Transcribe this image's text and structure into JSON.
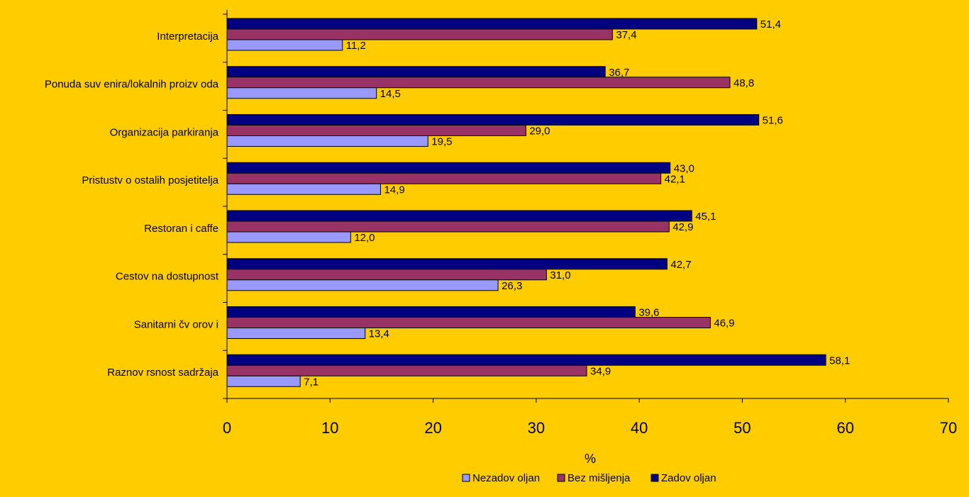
{
  "colors": {
    "background": "#FFCC00",
    "series": [
      "#9999FF",
      "#993366",
      "#000080"
    ]
  },
  "chart_data": {
    "type": "bar",
    "orientation": "horizontal",
    "categories": [
      "Interpretacija",
      "Ponuda suv enira/lokalnih proizv oda",
      "Organizacija parkiranja",
      "Pristustv o ostalih posjetitelja",
      "Restoran i caffe",
      "Cestov na dostupnost",
      "Sanitarni čv orov i",
      "Raznov rsnost sadržaja"
    ],
    "series": [
      {
        "name": "Nezadov oljan",
        "values": [
          11.2,
          14.5,
          19.5,
          14.9,
          12.0,
          26.3,
          13.4,
          7.1
        ]
      },
      {
        "name": "Bez mišljenja",
        "values": [
          37.4,
          48.8,
          29.0,
          42.1,
          42.9,
          31.0,
          46.9,
          34.9
        ]
      },
      {
        "name": "Zadov oljan",
        "values": [
          51.4,
          36.7,
          51.6,
          43.0,
          45.1,
          42.7,
          39.6,
          58.1
        ]
      }
    ],
    "value_labels": [
      [
        "11,2",
        "14,5",
        "19,5",
        "14,9",
        "12,0",
        "26,3",
        "13,4",
        "7,1"
      ],
      [
        "37,4",
        "48,8",
        "29,0",
        "42,1",
        "42,9",
        "31,0",
        "46,9",
        "34,9"
      ],
      [
        "51,4",
        "36,7",
        "51,6",
        "43,0",
        "45,1",
        "42,7",
        "39,6",
        "58,1"
      ]
    ],
    "xlim": [
      0,
      70
    ],
    "xticks": [
      "0",
      "10",
      "20",
      "30",
      "40",
      "50",
      "60",
      "70"
    ],
    "xlabel": "%",
    "grid": false,
    "legend": "bottom"
  }
}
